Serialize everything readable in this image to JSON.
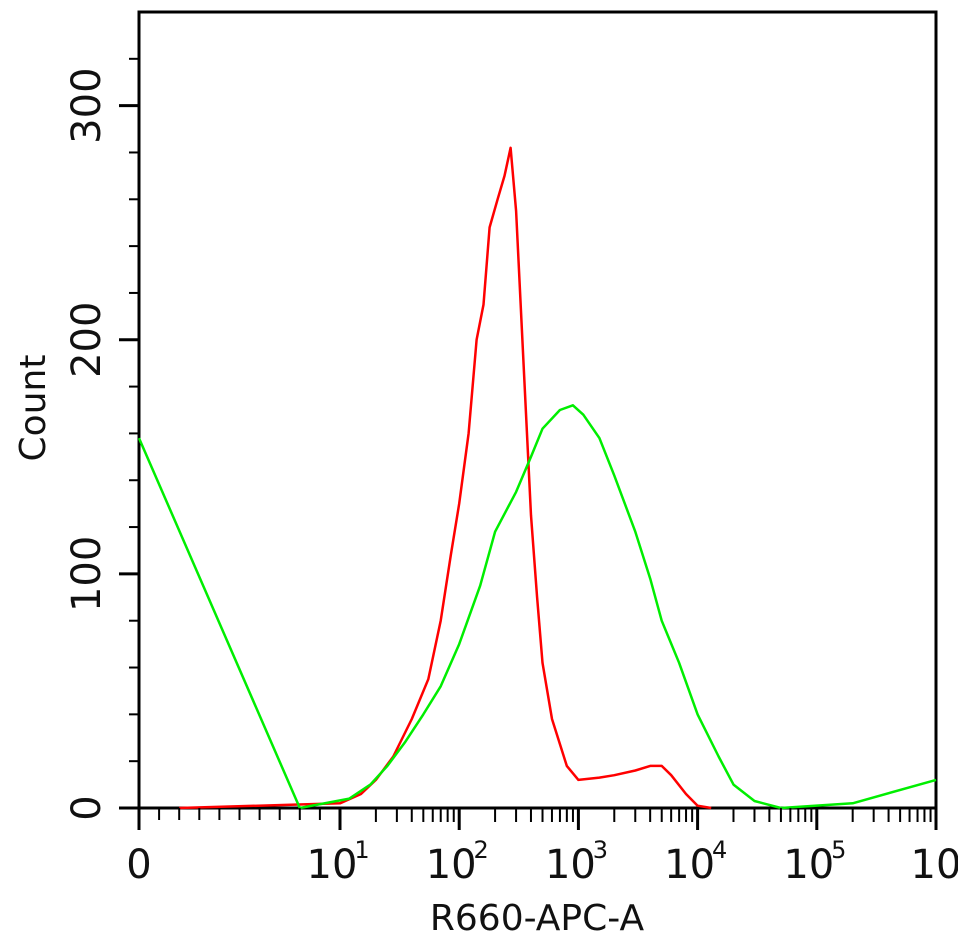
{
  "chart_data": {
    "type": "line",
    "title": "",
    "xlabel": "R660-APC-A",
    "ylabel": "Count",
    "x_scale": "biexponential",
    "x_tick_labels": [
      "0",
      "10",
      "10",
      "10",
      "10",
      "10",
      "10"
    ],
    "x_tick_exponents": [
      "",
      "1",
      "2",
      "3",
      "4",
      "5",
      ""
    ],
    "x_tick_values": [
      0,
      10,
      100,
      1000,
      10000,
      100000,
      1000000
    ],
    "y_tick_labels": [
      "0",
      "100",
      "200",
      "300"
    ],
    "y_tick_values": [
      0,
      100,
      200,
      300
    ],
    "ylim": [
      0,
      340
    ],
    "xlim": [
      0,
      1000000
    ],
    "grid": false,
    "legend": "none",
    "series": [
      {
        "color": "#ff0000",
        "points": [
          [
            2,
            0
          ],
          [
            10,
            2
          ],
          [
            15,
            6
          ],
          [
            20,
            12
          ],
          [
            28,
            22
          ],
          [
            40,
            38
          ],
          [
            55,
            55
          ],
          [
            70,
            80
          ],
          [
            85,
            108
          ],
          [
            100,
            130
          ],
          [
            120,
            160
          ],
          [
            140,
            200
          ],
          [
            160,
            215
          ],
          [
            180,
            248
          ],
          [
            210,
            260
          ],
          [
            240,
            270
          ],
          [
            270,
            282
          ],
          [
            300,
            255
          ],
          [
            350,
            185
          ],
          [
            400,
            125
          ],
          [
            450,
            90
          ],
          [
            500,
            62
          ],
          [
            600,
            38
          ],
          [
            800,
            18
          ],
          [
            1000,
            12
          ],
          [
            1500,
            13
          ],
          [
            2000,
            14
          ],
          [
            3000,
            16
          ],
          [
            4000,
            18
          ],
          [
            5000,
            18
          ],
          [
            6000,
            14
          ],
          [
            8000,
            6
          ],
          [
            10000,
            1
          ],
          [
            13000,
            0
          ]
        ]
      },
      {
        "color": "#00ee00",
        "points": [
          [
            0,
            158
          ],
          [
            8,
            0
          ],
          [
            12,
            4
          ],
          [
            18,
            10
          ],
          [
            25,
            18
          ],
          [
            35,
            28
          ],
          [
            50,
            40
          ],
          [
            70,
            52
          ],
          [
            100,
            70
          ],
          [
            150,
            95
          ],
          [
            200,
            118
          ],
          [
            300,
            135
          ],
          [
            400,
            150
          ],
          [
            500,
            162
          ],
          [
            700,
            170
          ],
          [
            900,
            172
          ],
          [
            1100,
            168
          ],
          [
            1500,
            158
          ],
          [
            2000,
            142
          ],
          [
            3000,
            118
          ],
          [
            4000,
            98
          ],
          [
            5000,
            80
          ],
          [
            7000,
            62
          ],
          [
            10000,
            40
          ],
          [
            15000,
            22
          ],
          [
            20000,
            10
          ],
          [
            30000,
            3
          ],
          [
            50000,
            0
          ],
          [
            200000,
            2
          ],
          [
            1000000,
            12
          ]
        ]
      }
    ]
  }
}
